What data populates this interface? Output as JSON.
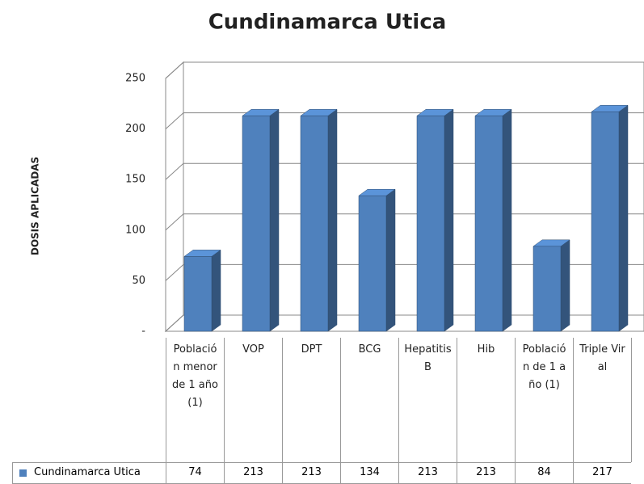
{
  "chart_data": {
    "type": "bar",
    "title": "Cundinamarca Utica",
    "y_label": "DOSIS APLICADAS",
    "categories": [
      "Población menor de 1 año (1)",
      "VOP",
      "DPT",
      "BCG",
      "Hepatitis B",
      "Hib",
      "Población de 1 año (1)",
      "Triple Viral"
    ],
    "series": [
      {
        "name": "Cundinamarca Utica",
        "color": "#4f81bd",
        "values": [
          74,
          213,
          213,
          134,
          213,
          213,
          84,
          217
        ]
      }
    ],
    "ylim": [
      0,
      250
    ],
    "yticks": [
      {
        "value": 0,
        "label": "-"
      },
      50,
      100,
      150,
      200,
      250
    ],
    "grid": true
  }
}
